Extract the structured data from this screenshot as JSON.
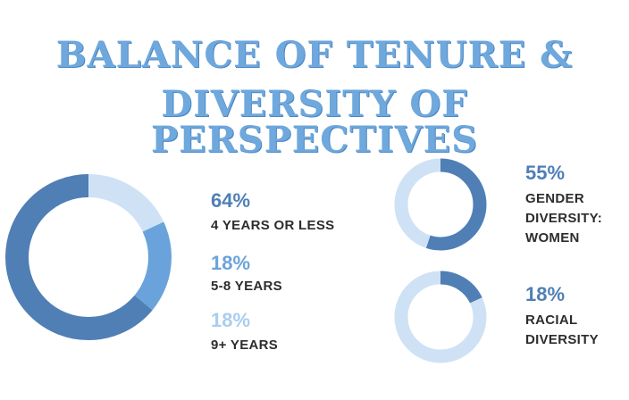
{
  "title_line1": "BALANCE OF TENURE &",
  "title_line2": "DIVERSITY OF PERSPECTIVES",
  "colors": {
    "dark": "#4f7fb5",
    "mid": "#6aa3db",
    "light": "#cfe2f5",
    "title": "#6fa8dc"
  },
  "chart_data": [
    {
      "type": "pie",
      "donut": true,
      "series": [
        {
          "label_pct": "64%",
          "value": 64,
          "label": "4 YEARS OR LESS",
          "color": "#4f7fb5"
        },
        {
          "label_pct": "18%",
          "value": 18,
          "label": "5-8 YEARS",
          "color": "#6aa3db"
        },
        {
          "label_pct": "18%",
          "value": 18,
          "label": "9+ YEARS",
          "color": "#cfe2f5"
        }
      ]
    },
    {
      "type": "pie",
      "donut": true,
      "label_pct": "55%",
      "value": 55,
      "label_lines": [
        "GENDER",
        "DIVERSITY:",
        "WOMEN"
      ],
      "color": "#4f7fb5",
      "rest_color": "#cfe2f5"
    },
    {
      "type": "pie",
      "donut": true,
      "label_pct": "18%",
      "value": 18,
      "label_lines": [
        "RACIAL",
        "DIVERSITY"
      ],
      "color": "#4f7fb5",
      "rest_color": "#cfe2f5"
    }
  ]
}
